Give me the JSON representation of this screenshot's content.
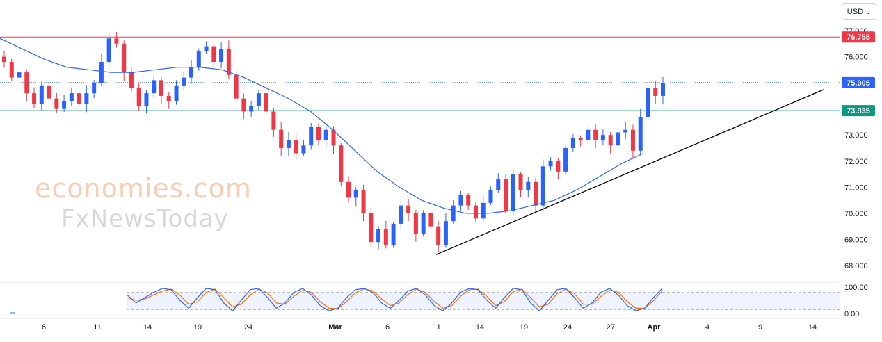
{
  "chart_data": [
    {
      "type": "candlestick",
      "title": "",
      "currency": "USD",
      "ylim": [
        67.6,
        77.1
      ],
      "yticks": [
        "77.000",
        "76.000",
        "75.000",
        "74.000",
        "73.000",
        "72.000",
        "71.000",
        "70.000",
        "69.000",
        "68.000"
      ],
      "ytick_values": [
        77,
        76,
        75,
        74,
        73,
        72,
        71,
        70,
        69,
        68
      ],
      "xticks": [
        "6",
        "11",
        "14",
        "19",
        "24",
        "Mar",
        "6",
        "11",
        "14",
        "19",
        "24",
        "27",
        "Apr",
        "4",
        "9",
        "14"
      ],
      "price_labels": [
        {
          "text": "76.755",
          "value": 76.755,
          "color": "#f23645"
        },
        {
          "text": "75.005",
          "value": 75.005,
          "color": "#2962ff"
        },
        {
          "text": "73.935",
          "value": 73.935,
          "color": "#089981"
        }
      ],
      "horizontal_levels": [
        {
          "value": 76.755,
          "color": "#f23645",
          "style": "solid"
        },
        {
          "value": 73.935,
          "color": "#089981",
          "style": "solid"
        },
        {
          "value": 75.005,
          "color": "#2962ff",
          "style": "dotted"
        }
      ],
      "trendline": {
        "from_value": 68.42,
        "to_value": 74.75,
        "color": "#000000"
      },
      "colors": {
        "up": "#2962ff",
        "down": "#f23645",
        "moving_average": "#2962ff"
      },
      "close_path": [
        75.8,
        75.2,
        75.4,
        74.6,
        74.2,
        74.9,
        74.4,
        74.0,
        74.3,
        74.6,
        74.2,
        74.6,
        75.0,
        75.8,
        76.7,
        76.5,
        75.4,
        74.8,
        74.1,
        74.6,
        75.1,
        74.5,
        74.3,
        74.9,
        75.2,
        75.6,
        76.2,
        76.4,
        75.8,
        76.3,
        75.3,
        74.4,
        73.9,
        74.1,
        74.6,
        73.9,
        73.2,
        72.5,
        72.8,
        72.3,
        72.6,
        73.3,
        72.8,
        73.2,
        72.6,
        71.2,
        70.6,
        70.9,
        70.0,
        68.9,
        69.4,
        68.8,
        69.6,
        70.3,
        70.0,
        69.2,
        70.0,
        69.5,
        68.8,
        69.7,
        70.3,
        70.7,
        70.3,
        69.8,
        70.4,
        70.9,
        71.3,
        70.1,
        71.5,
        70.9,
        71.2,
        70.3,
        71.8,
        72.0,
        71.6,
        72.5,
        72.9,
        72.8,
        73.2,
        72.8,
        73.0,
        72.6,
        73.1,
        73.2,
        72.4,
        73.7,
        74.8,
        74.5,
        75.0
      ],
      "moving_average_points": [
        76.7,
        76.3,
        75.9,
        75.6,
        75.5,
        75.4,
        75.4,
        75.5,
        75.6,
        75.6,
        75.5,
        75.2,
        74.8,
        74.4,
        73.9,
        73.2,
        72.4,
        71.6,
        71.0,
        70.5,
        70.2,
        70.0,
        70.0,
        70.1,
        70.3,
        70.5,
        70.9,
        71.4,
        71.9,
        72.3
      ],
      "stochastic": {
        "yticks": [
          "100.00",
          "0.00"
        ],
        "ytick_values": [
          100,
          0
        ],
        "bands": [
          80,
          20
        ],
        "k": [
          70,
          40,
          60,
          80,
          95,
          90,
          50,
          20,
          60,
          95,
          90,
          40,
          10,
          50,
          90,
          95,
          60,
          20,
          40,
          80,
          95,
          70,
          30,
          10,
          20,
          60,
          90,
          95,
          80,
          40,
          20,
          50,
          85,
          95,
          70,
          30,
          10,
          40,
          80,
          95,
          90,
          50,
          20,
          60,
          95,
          90,
          40,
          10,
          50,
          90,
          95,
          60,
          20,
          40,
          80,
          95,
          70,
          30,
          10,
          20,
          60,
          95
        ],
        "d": [
          60,
          50,
          55,
          70,
          85,
          92,
          70,
          35,
          45,
          80,
          92,
          60,
          25,
          35,
          70,
          92,
          78,
          40,
          35,
          65,
          88,
          80,
          45,
          20,
          18,
          45,
          78,
          93,
          86,
          55,
          30,
          40,
          72,
          92,
          80,
          45,
          20,
          30,
          65,
          90,
          92,
          65,
          30,
          45,
          82,
          92,
          60,
          25,
          35,
          75,
          92,
          75,
          35,
          35,
          65,
          88,
          80,
          45,
          20,
          20,
          48,
          85
        ]
      }
    }
  ],
  "currency_button": {
    "label": "USD",
    "caret": "⌄"
  },
  "watermark": {
    "line1": "economies.com",
    "line2": "FxNewsToday"
  }
}
